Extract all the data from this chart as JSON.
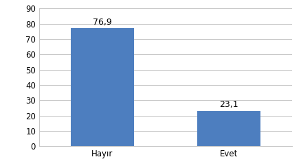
{
  "categories": [
    "Hayır",
    "Evet"
  ],
  "values": [
    76.9,
    23.1
  ],
  "bar_color": "#4d7ebf",
  "ylim": [
    0,
    90
  ],
  "yticks": [
    0,
    10,
    20,
    30,
    40,
    50,
    60,
    70,
    80,
    90
  ],
  "label_fontsize": 9,
  "tick_fontsize": 8.5,
  "background_color": "#ffffff",
  "grid_color": "#c8c8c8",
  "bar_width": 0.5
}
